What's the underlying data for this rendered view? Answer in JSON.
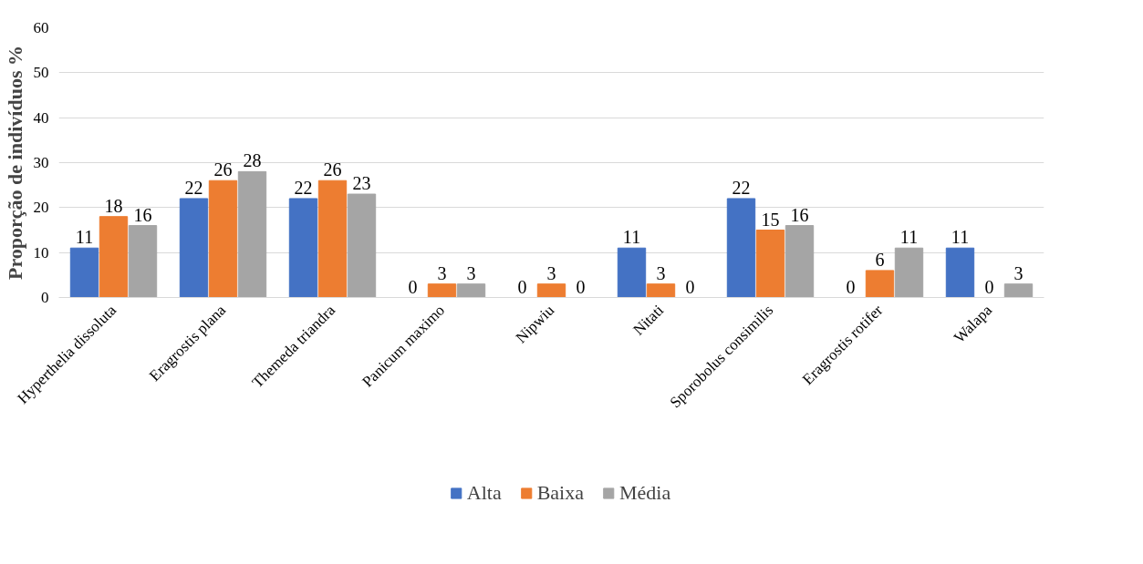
{
  "chart_data": {
    "type": "bar",
    "ylabel": "Proporção de indivíduos %",
    "categories": [
      "Hyperthelia dissoluta",
      "Eragrostis plana",
      "Themeda triandra",
      "Panicum maximo",
      "Nipwiu",
      "Nitati",
      "Sporobolus consimilis",
      "Eragrostis rotifer",
      "Walapa"
    ],
    "series": [
      {
        "name": "Alta",
        "color": "#4472c4",
        "values": [
          11,
          22,
          22,
          0,
          0,
          11,
          22,
          0,
          11
        ]
      },
      {
        "name": "Baixa",
        "color": "#ed7d31",
        "values": [
          18,
          26,
          26,
          3,
          3,
          3,
          15,
          6,
          0
        ]
      },
      {
        "name": "Média",
        "color": "#a5a5a5",
        "values": [
          16,
          28,
          23,
          3,
          0,
          0,
          16,
          11,
          3
        ]
      }
    ],
    "ylim": [
      0,
      60
    ],
    "yticks": [
      0,
      10,
      20,
      30,
      40,
      50,
      60
    ],
    "grid": "y",
    "legend": "bottom",
    "data_labels": true
  }
}
